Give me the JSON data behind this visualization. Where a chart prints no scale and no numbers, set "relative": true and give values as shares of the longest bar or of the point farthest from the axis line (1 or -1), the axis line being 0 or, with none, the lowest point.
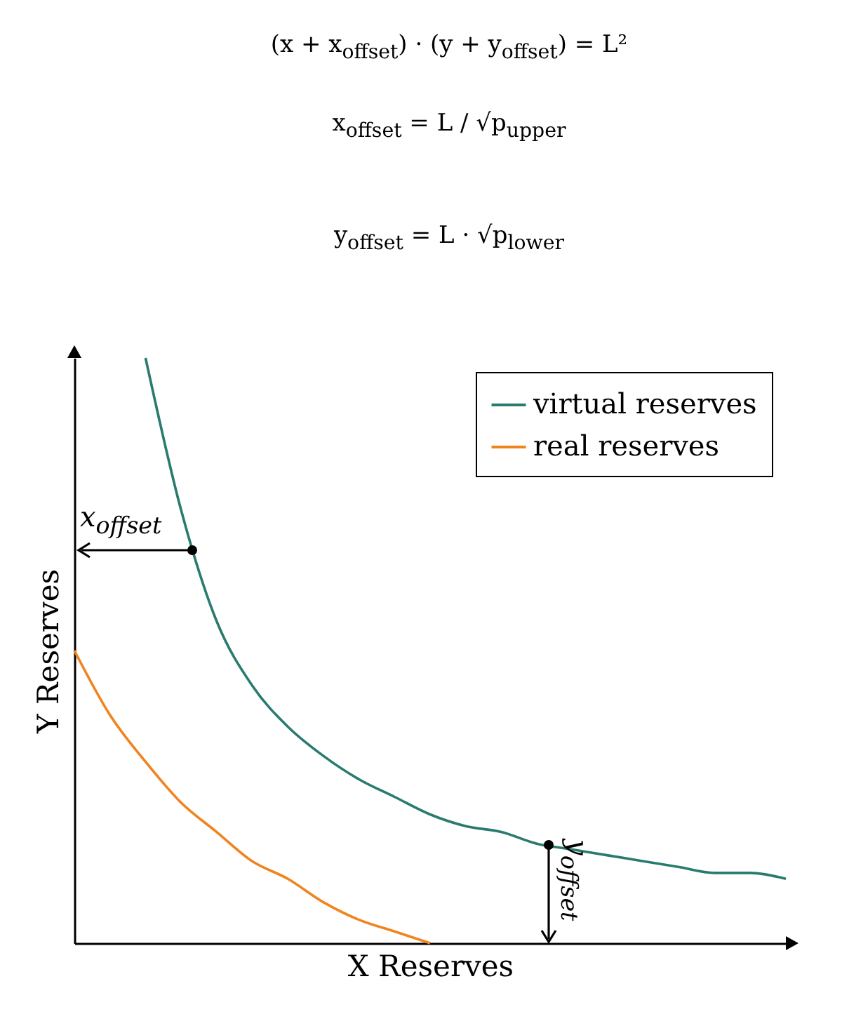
{
  "chart_data": {
    "type": "line",
    "relative": true,
    "xlabel": "X Reserves",
    "ylabel": "Y Reserves",
    "tick_labels": false,
    "grid": false,
    "legend": "top right",
    "line_style": "solid",
    "marker": "none",
    "annotations": [
      "(x + x$_{offset}$) · (y + y$_{offset}$) = L²",
      "x$_{offset}$ = L / √p$_{upper}$",
      "y$_{offset}$ = L · √p$_{lower}$",
      "x$_{offset}$",
      "y$_{offset}$"
    ],
    "categories": [
      null,
      null,
      null,
      null,
      null,
      null,
      null,
      null,
      null,
      null,
      null,
      null,
      null,
      null,
      null,
      null,
      null,
      null,
      null,
      null,
      null
    ],
    "series": [
      {
        "name": "virtual reserves",
        "color": "#2a7b6f",
        "values": [
          null,
          null,
          1,
          0.74,
          0.55,
          0.44,
          0.37,
          0.32,
          0.28,
          0.25,
          0.22,
          0.2,
          0.19,
          0.17,
          0.16,
          0.15,
          0.14,
          0.13,
          0.12,
          0.12,
          0.11
        ]
      },
      {
        "name": "real reserves",
        "color": "#f0841e",
        "values": [
          0.5,
          0.39,
          0.31,
          0.24,
          0.19,
          0.14,
          0.11,
          0.07,
          0.04,
          0.02,
          0,
          null,
          null,
          null,
          null,
          null,
          null,
          null,
          null,
          null,
          null
        ]
      }
    ]
  }
}
